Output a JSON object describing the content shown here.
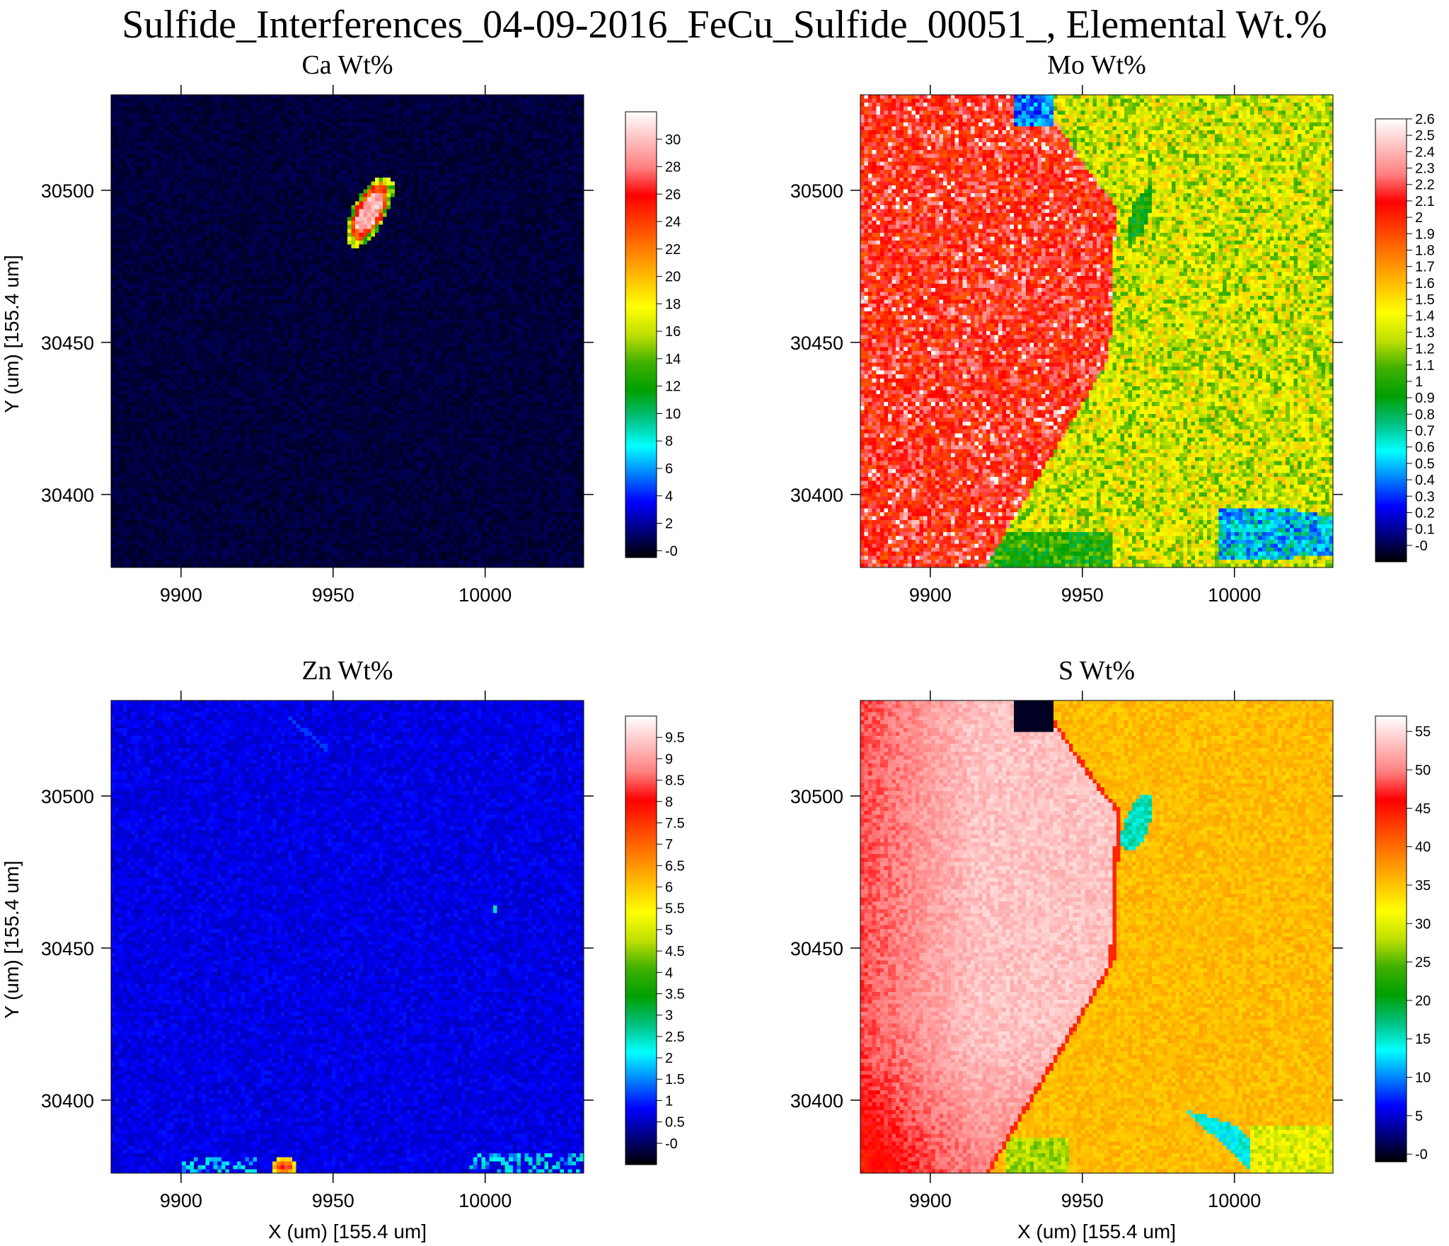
{
  "figure_title": "Sulfide_Interferences_04-09-2016_FeCu_Sulfide_00051_, Elemental Wt.%",
  "colormap": [
    "#000000",
    "#000080",
    "#0000ff",
    "#0080ff",
    "#00ffff",
    "#00c080",
    "#00a000",
    "#40b000",
    "#c0e000",
    "#ffff00",
    "#ffc000",
    "#ff8000",
    "#ff4000",
    "#ff0000",
    "#ff8080",
    "#ffc0c0",
    "#ffffff"
  ],
  "chart_data": [
    {
      "type": "heatmap",
      "title": "Ca Wt%",
      "xlabel": "",
      "ylabel": "Y (um)   [155.4 um]",
      "xlim": [
        9877,
        10032.4
      ],
      "ylim": [
        30376,
        30531.4
      ],
      "xticks": [
        9900,
        9950,
        10000
      ],
      "yticks": [
        30400,
        30450,
        30500
      ],
      "colorbar": {
        "range": [
          -0.5,
          32
        ],
        "ticks": [
          "-0",
          "2",
          "4",
          "6",
          "8",
          "10",
          "12",
          "14",
          "16",
          "18",
          "20",
          "22",
          "24",
          "26",
          "28",
          "30"
        ]
      },
      "description_values": {
        "background": 0,
        "feature_max": 30
      }
    },
    {
      "type": "heatmap",
      "title": "Mo Wt%",
      "xlabel": "",
      "ylabel": "",
      "xlim": [
        9877,
        10032.4
      ],
      "ylim": [
        30376,
        30531.4
      ],
      "xticks": [
        9900,
        9950,
        10000
      ],
      "yticks": [
        30400,
        30450,
        30500
      ],
      "colorbar": {
        "range": [
          -0.1,
          2.6
        ],
        "ticks": [
          "-0",
          "0.1",
          "0.2",
          "0.3",
          "0.4",
          "0.5",
          "0.6",
          "0.7",
          "0.8",
          "0.9",
          "1",
          "1.1",
          "1.2",
          "1.3",
          "1.4",
          "1.5",
          "1.6",
          "1.7",
          "1.8",
          "1.9",
          "2",
          "2.1",
          "2.2",
          "2.3",
          "2.4",
          "2.5",
          "2.6"
        ]
      },
      "description_values": {
        "left_grain": 2.0,
        "right_matrix": 1.3
      }
    },
    {
      "type": "heatmap",
      "title": "Zn Wt%",
      "xlabel": "X (um)   [155.4 um]",
      "ylabel": "Y (um)   [155.4 um]",
      "xlim": [
        9877,
        10032.4
      ],
      "ylim": [
        30376,
        30531.4
      ],
      "xticks": [
        9900,
        9950,
        10000
      ],
      "yticks": [
        30400,
        30450,
        30500
      ],
      "colorbar": {
        "range": [
          -0.5,
          10
        ],
        "ticks": [
          "-0",
          "0.5",
          "1",
          "1.5",
          "2",
          "2.5",
          "3",
          "3.5",
          "4",
          "4.5",
          "5",
          "5.5",
          "6",
          "6.5",
          "7",
          "7.5",
          "8",
          "8.5",
          "9",
          "9.5"
        ]
      },
      "description_values": {
        "background": 0.6,
        "hotspot_max": 8
      }
    },
    {
      "type": "heatmap",
      "title": "S Wt%",
      "xlabel": "X (um)   [155.4 um]",
      "ylabel": "",
      "xlim": [
        9877,
        10032.4
      ],
      "ylim": [
        30376,
        30531.4
      ],
      "xticks": [
        9900,
        9950,
        10000
      ],
      "yticks": [
        30400,
        30450,
        30500
      ],
      "colorbar": {
        "range": [
          -1,
          57
        ],
        "ticks": [
          "-0",
          "5",
          "10",
          "15",
          "20",
          "25",
          "30",
          "35",
          "40",
          "45",
          "50",
          "55"
        ]
      },
      "description_values": {
        "left_grain": 52,
        "right_matrix": 35
      }
    }
  ]
}
